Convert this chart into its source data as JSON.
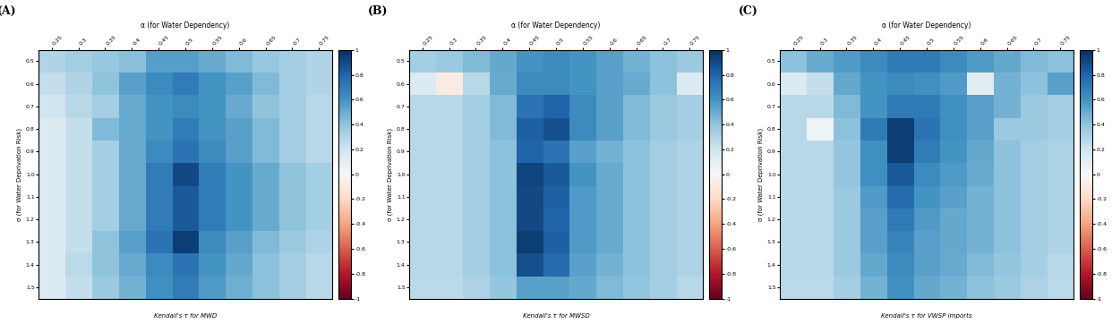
{
  "alpha_vals": [
    0.25,
    0.3,
    0.35,
    0.4,
    0.45,
    0.5,
    0.55,
    0.6,
    0.65,
    0.7,
    0.75
  ],
  "sigma_vals": [
    0.5,
    0.6,
    0.7,
    0.8,
    0.9,
    1.0,
    1.1,
    1.2,
    1.3,
    1.4,
    1.5
  ],
  "panel_labels": [
    "(A)",
    "(B)",
    "(C)"
  ],
  "top_title": "α (for Water Dependency)",
  "ylabel": "σ (for Water Deprivation Risk)",
  "bottom_labels": [
    "Kendall's τ for MWD",
    "Kendall's τ for MWSD",
    "Kendall's τ for VWSP imports"
  ],
  "vmin": -1,
  "vmax": 1,
  "cmap": "RdBu",
  "colorbar_ticks": [
    1,
    0.8,
    0.6,
    0.4,
    0.2,
    0,
    -0.2,
    -0.4,
    -0.6,
    -0.8,
    -1
  ],
  "colorbar_ticklabels_A": [
    "1",
    "0.8",
    "0.6",
    "0.4",
    "0.2",
    "0",
    "-0.2",
    "-0.4",
    "-0.6",
    "-0.8",
    "-1"
  ],
  "colorbar_ticklabels_B": [
    "1",
    "0.8",
    "0.6",
    "0.4",
    "0.2",
    "0",
    "-0.2",
    "-0.4",
    "-0.6",
    "-0.8",
    "-1"
  ],
  "colorbar_ticklabels_C": [
    "1",
    "0.8",
    "0.6",
    "0.4",
    "0.2",
    "0",
    "-0.2",
    "-0.4",
    "-0.6",
    "-0.8",
    "-1"
  ],
  "data_A": [
    [
      0.3,
      0.35,
      0.38,
      0.42,
      0.55,
      0.55,
      0.5,
      0.44,
      0.38,
      0.34,
      0.3
    ],
    [
      0.24,
      0.3,
      0.4,
      0.54,
      0.64,
      0.7,
      0.6,
      0.54,
      0.44,
      0.34,
      0.3
    ],
    [
      0.2,
      0.28,
      0.34,
      0.5,
      0.6,
      0.64,
      0.6,
      0.5,
      0.4,
      0.34,
      0.28
    ],
    [
      0.14,
      0.24,
      0.44,
      0.5,
      0.6,
      0.7,
      0.6,
      0.54,
      0.44,
      0.34,
      0.28
    ],
    [
      0.14,
      0.24,
      0.34,
      0.5,
      0.64,
      0.74,
      0.64,
      0.54,
      0.44,
      0.34,
      0.28
    ],
    [
      0.14,
      0.24,
      0.34,
      0.5,
      0.7,
      0.9,
      0.7,
      0.6,
      0.5,
      0.4,
      0.34
    ],
    [
      0.14,
      0.24,
      0.34,
      0.5,
      0.7,
      0.84,
      0.7,
      0.6,
      0.5,
      0.4,
      0.34
    ],
    [
      0.14,
      0.24,
      0.34,
      0.5,
      0.7,
      0.84,
      0.7,
      0.6,
      0.5,
      0.4,
      0.34
    ],
    [
      0.14,
      0.24,
      0.4,
      0.54,
      0.74,
      0.94,
      0.64,
      0.54,
      0.44,
      0.37,
      0.31
    ],
    [
      0.14,
      0.27,
      0.4,
      0.5,
      0.64,
      0.74,
      0.6,
      0.51,
      0.41,
      0.34,
      0.28
    ],
    [
      0.14,
      0.24,
      0.37,
      0.47,
      0.61,
      0.7,
      0.57,
      0.49,
      0.41,
      0.34,
      0.28
    ]
  ],
  "data_B": [
    [
      0.34,
      0.37,
      0.44,
      0.51,
      0.6,
      0.64,
      0.6,
      0.54,
      0.47,
      0.41,
      0.37
    ],
    [
      0.14,
      -0.08,
      0.28,
      0.5,
      0.64,
      0.64,
      0.6,
      0.54,
      0.5,
      0.41,
      0.14
    ],
    [
      0.28,
      0.28,
      0.34,
      0.44,
      0.74,
      0.8,
      0.64,
      0.54,
      0.44,
      0.37,
      0.34
    ],
    [
      0.28,
      0.28,
      0.34,
      0.44,
      0.82,
      0.88,
      0.64,
      0.54,
      0.44,
      0.37,
      0.34
    ],
    [
      0.28,
      0.28,
      0.34,
      0.41,
      0.8,
      0.74,
      0.54,
      0.47,
      0.41,
      0.34,
      0.31
    ],
    [
      0.28,
      0.28,
      0.34,
      0.41,
      0.92,
      0.84,
      0.6,
      0.5,
      0.41,
      0.34,
      0.31
    ],
    [
      0.28,
      0.28,
      0.34,
      0.41,
      0.9,
      0.82,
      0.57,
      0.5,
      0.41,
      0.34,
      0.31
    ],
    [
      0.28,
      0.28,
      0.34,
      0.41,
      0.9,
      0.8,
      0.57,
      0.5,
      0.41,
      0.34,
      0.31
    ],
    [
      0.28,
      0.28,
      0.34,
      0.41,
      0.94,
      0.82,
      0.57,
      0.5,
      0.41,
      0.34,
      0.31
    ],
    [
      0.28,
      0.28,
      0.34,
      0.41,
      0.88,
      0.77,
      0.54,
      0.47,
      0.41,
      0.34,
      0.31
    ],
    [
      0.27,
      0.27,
      0.31,
      0.39,
      0.54,
      0.54,
      0.51,
      0.44,
      0.39,
      0.34,
      0.28
    ]
  ],
  "data_C": [
    [
      0.41,
      0.5,
      0.57,
      0.64,
      0.71,
      0.71,
      0.64,
      0.57,
      0.51,
      0.44,
      0.41
    ],
    [
      0.14,
      0.24,
      0.51,
      0.6,
      0.64,
      0.61,
      0.57,
      0.11,
      0.47,
      0.41,
      0.54
    ],
    [
      0.28,
      0.28,
      0.44,
      0.6,
      0.71,
      0.71,
      0.61,
      0.54,
      0.47,
      0.37,
      0.34
    ],
    [
      0.28,
      0.04,
      0.41,
      0.71,
      0.94,
      0.74,
      0.61,
      0.54,
      0.37,
      0.37,
      0.34
    ],
    [
      0.28,
      0.28,
      0.39,
      0.61,
      0.94,
      0.7,
      0.6,
      0.51,
      0.41,
      0.34,
      0.31
    ],
    [
      0.28,
      0.28,
      0.39,
      0.61,
      0.84,
      0.64,
      0.57,
      0.5,
      0.41,
      0.34,
      0.31
    ],
    [
      0.28,
      0.28,
      0.37,
      0.57,
      0.77,
      0.6,
      0.54,
      0.47,
      0.41,
      0.34,
      0.31
    ],
    [
      0.28,
      0.28,
      0.37,
      0.54,
      0.71,
      0.57,
      0.51,
      0.47,
      0.41,
      0.34,
      0.31
    ],
    [
      0.28,
      0.28,
      0.37,
      0.54,
      0.67,
      0.54,
      0.51,
      0.47,
      0.41,
      0.34,
      0.31
    ],
    [
      0.28,
      0.28,
      0.37,
      0.51,
      0.64,
      0.54,
      0.5,
      0.44,
      0.39,
      0.34,
      0.28
    ],
    [
      0.27,
      0.27,
      0.34,
      0.47,
      0.61,
      0.51,
      0.47,
      0.41,
      0.37,
      0.31,
      0.27
    ]
  ],
  "figsize": [
    12.42,
    3.62
  ],
  "dpi": 100
}
